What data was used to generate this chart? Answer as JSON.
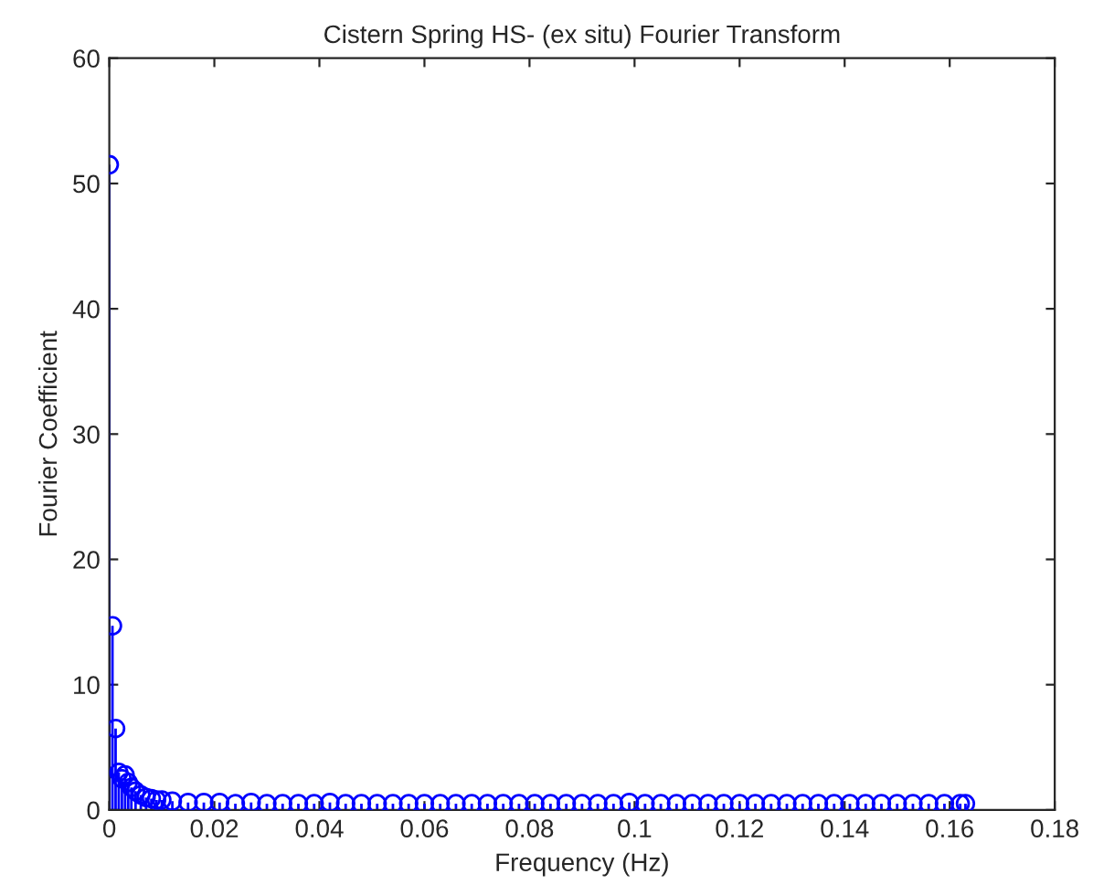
{
  "chart_data": {
    "type": "lollipop",
    "title": "Cistern Spring HS- (ex situ) Fourier Transform",
    "xlabel": "Frequency (Hz)",
    "ylabel": "Fourier Coefficient",
    "xlim": [
      0,
      0.18
    ],
    "xticks": [
      0,
      0.02,
      0.04,
      0.06,
      0.08,
      0.1,
      0.12,
      0.14,
      0.16,
      0.18
    ],
    "ylim": [
      0,
      60
    ],
    "yticks": [
      0,
      10,
      20,
      30,
      40,
      50,
      60
    ],
    "marker": "circle",
    "grid": false,
    "legend": false,
    "series": [
      {
        "color": "#0000ff",
        "x": [
          0,
          0.0006,
          0.0012,
          0.0018,
          0.0024,
          0.003,
          0.0036,
          0.0042,
          0.005,
          0.006,
          0.007,
          0.008,
          0.009,
          0.01,
          0.012,
          0.015,
          0.018,
          0.021,
          0.024,
          0.027,
          0.03,
          0.033,
          0.036,
          0.039,
          0.042,
          0.045,
          0.048,
          0.051,
          0.054,
          0.057,
          0.06,
          0.063,
          0.066,
          0.069,
          0.072,
          0.075,
          0.078,
          0.081,
          0.084,
          0.087,
          0.09,
          0.093,
          0.096,
          0.099,
          0.102,
          0.105,
          0.108,
          0.111,
          0.114,
          0.117,
          0.12,
          0.123,
          0.126,
          0.129,
          0.132,
          0.135,
          0.138,
          0.141,
          0.144,
          0.147,
          0.15,
          0.153,
          0.156,
          0.159,
          0.162,
          0.163
        ],
        "values": [
          51.5,
          14.7,
          6.5,
          3.0,
          2.5,
          2.8,
          2.2,
          1.8,
          1.5,
          1.2,
          1.0,
          0.9,
          0.8,
          0.8,
          0.7,
          0.6,
          0.6,
          0.6,
          0.5,
          0.6,
          0.5,
          0.5,
          0.5,
          0.5,
          0.6,
          0.5,
          0.5,
          0.5,
          0.5,
          0.5,
          0.5,
          0.5,
          0.5,
          0.5,
          0.5,
          0.5,
          0.5,
          0.5,
          0.5,
          0.5,
          0.5,
          0.5,
          0.5,
          0.6,
          0.5,
          0.5,
          0.5,
          0.5,
          0.5,
          0.5,
          0.5,
          0.5,
          0.5,
          0.5,
          0.5,
          0.5,
          0.5,
          0.5,
          0.5,
          0.5,
          0.5,
          0.5,
          0.5,
          0.5,
          0.5,
          0.5
        ]
      }
    ]
  }
}
